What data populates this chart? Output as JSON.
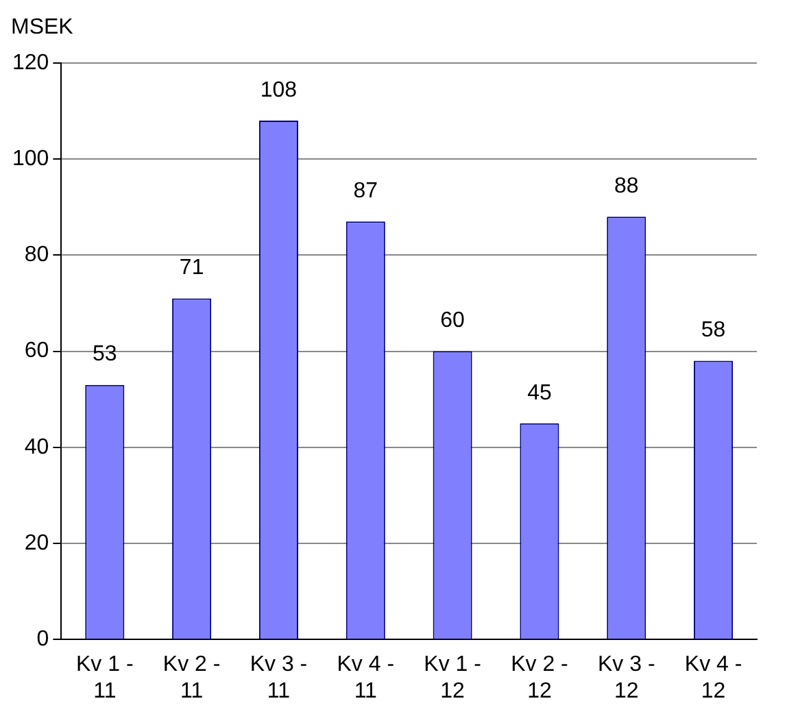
{
  "chart_data": {
    "type": "bar",
    "ylabel": "MSEK",
    "categories": [
      "Kv 1 - 11",
      "Kv 2 - 11",
      "Kv 3 - 11",
      "Kv 4 - 11",
      "Kv 1 - 12",
      "Kv 2 - 12",
      "Kv 3 - 12",
      "Kv 4 - 12"
    ],
    "values": [
      53,
      71,
      108,
      87,
      60,
      45,
      88,
      58
    ],
    "color": "#8080ff",
    "ylim": [
      0,
      120
    ],
    "yticks": [
      0,
      20,
      40,
      60,
      80,
      100,
      120
    ],
    "grid": "y",
    "data_labels": true
  }
}
